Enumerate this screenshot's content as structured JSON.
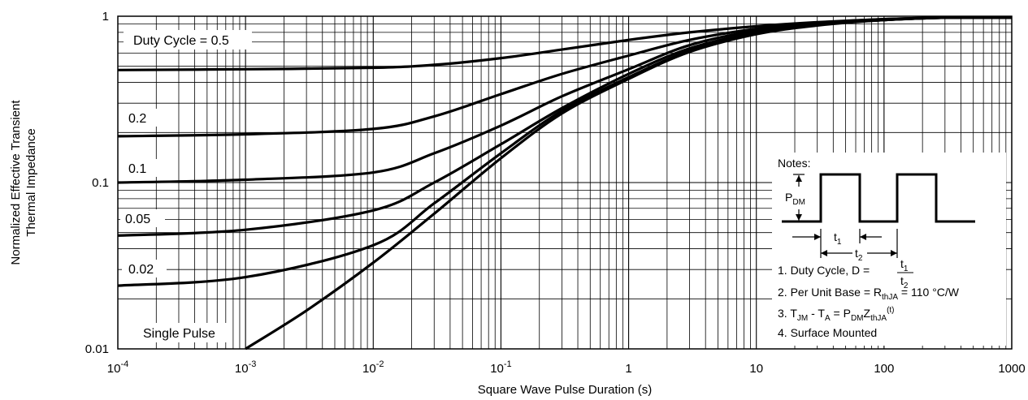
{
  "chart_data": {
    "type": "line",
    "xlabel": "Square Wave Pulse Duration (s)",
    "ylabel": [
      "Normalized Effective Transient",
      "Thermal Impedance"
    ],
    "x_scale": "log",
    "y_scale": "log",
    "xlim": [
      0.0001,
      1000
    ],
    "ylim": [
      0.01,
      1
    ],
    "grid": true,
    "x_ticks": [
      {
        "value": 0.0001,
        "base": "10",
        "exp": "-4"
      },
      {
        "value": 0.001,
        "base": "10",
        "exp": "-3"
      },
      {
        "value": 0.01,
        "base": "10",
        "exp": "-2"
      },
      {
        "value": 0.1,
        "base": "10",
        "exp": "-1"
      },
      {
        "value": 1,
        "base": "1",
        "exp": ""
      },
      {
        "value": 10,
        "base": "10",
        "exp": ""
      },
      {
        "value": 100,
        "base": "100",
        "exp": ""
      },
      {
        "value": 1000,
        "base": "1000",
        "exp": ""
      }
    ],
    "y_ticks": [
      {
        "value": 1,
        "label": "1"
      },
      {
        "value": 0.1,
        "label": "0.1"
      },
      {
        "value": 0.01,
        "label": "0.01"
      }
    ],
    "series": [
      {
        "name": "Duty Cycle = 0.5",
        "x": [
          0.0001,
          0.001,
          0.01,
          0.03,
          0.1,
          0.3,
          1,
          3,
          10,
          30,
          100,
          300,
          1000
        ],
        "y": [
          0.475,
          0.48,
          0.49,
          0.51,
          0.56,
          0.63,
          0.72,
          0.8,
          0.87,
          0.92,
          0.96,
          0.98,
          0.98
        ]
      },
      {
        "name": "0.2",
        "x": [
          0.0001,
          0.001,
          0.01,
          0.03,
          0.1,
          0.3,
          1,
          3,
          10,
          30,
          100,
          300,
          1000
        ],
        "y": [
          0.19,
          0.195,
          0.21,
          0.25,
          0.34,
          0.45,
          0.58,
          0.72,
          0.84,
          0.91,
          0.96,
          0.98,
          0.98
        ]
      },
      {
        "name": "0.1",
        "x": [
          0.0001,
          0.001,
          0.01,
          0.03,
          0.1,
          0.3,
          1,
          3,
          10,
          30,
          100,
          300,
          1000
        ],
        "y": [
          0.1,
          0.104,
          0.115,
          0.15,
          0.22,
          0.33,
          0.48,
          0.67,
          0.82,
          0.9,
          0.95,
          0.98,
          0.98
        ]
      },
      {
        "name": "0.05",
        "x": [
          0.0001,
          0.001,
          0.01,
          0.03,
          0.1,
          0.3,
          1,
          3,
          10,
          30,
          100,
          300,
          1000
        ],
        "y": [
          0.048,
          0.052,
          0.068,
          0.1,
          0.17,
          0.28,
          0.45,
          0.64,
          0.8,
          0.89,
          0.95,
          0.98,
          0.98
        ]
      },
      {
        "name": "0.02",
        "x": [
          0.0001,
          0.001,
          0.01,
          0.03,
          0.1,
          0.3,
          1,
          3,
          10,
          30,
          100,
          300,
          1000
        ],
        "y": [
          0.024,
          0.027,
          0.042,
          0.075,
          0.15,
          0.27,
          0.43,
          0.62,
          0.79,
          0.89,
          0.95,
          0.98,
          0.98
        ]
      },
      {
        "name": "Single Pulse",
        "x": [
          0.001,
          0.003,
          0.01,
          0.03,
          0.1,
          0.3,
          1,
          3,
          10,
          30,
          100,
          300,
          1000
        ],
        "y": [
          0.01,
          0.017,
          0.033,
          0.065,
          0.14,
          0.26,
          0.42,
          0.61,
          0.78,
          0.88,
          0.95,
          0.98,
          0.98
        ]
      }
    ]
  },
  "notes": {
    "title": "Notes:",
    "pdm_label": "P",
    "pdm_sub": "DM",
    "t1_label": "t",
    "t1_sub": "1",
    "t2_label": "t",
    "t2_sub": "2",
    "line1": "1. Duty Cycle, D =",
    "line1_num": "t",
    "line1_num_sub": "1",
    "line1_den": "t",
    "line1_den_sub": "2",
    "line2_pre": "2. Per Unit Base = R",
    "line2_sub": "thJA",
    "line2_post": " = 110 °C/W",
    "line3_a": "3. T",
    "line3_a_sub": "JM",
    "line3_b": " - T",
    "line3_b_sub": "A",
    "line3_c": " = P",
    "line3_c_sub": "DM",
    "line3_d": "Z",
    "line3_d_sub": "thJA",
    "line3_sup": "(t)",
    "line4": "4. Surface Mounted"
  }
}
